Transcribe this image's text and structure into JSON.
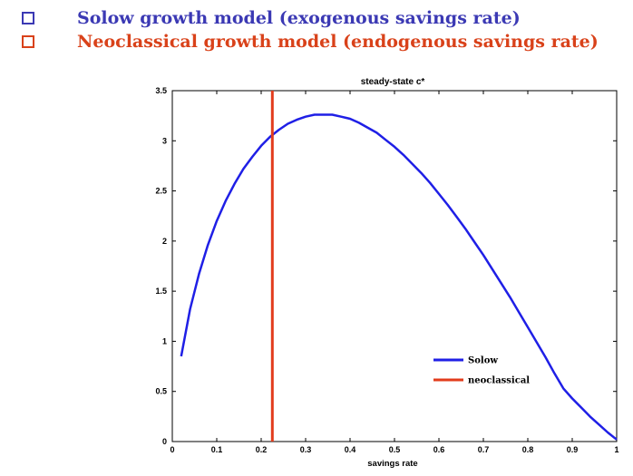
{
  "bullets": [
    {
      "text": "Solow growth model (exogenous savings rate)",
      "color": "#3b39b4"
    },
    {
      "text": "Neoclassical growth model (endogenous savings rate)",
      "color": "#d9421a"
    }
  ],
  "chart_data": {
    "type": "line",
    "title": "steady-state c*",
    "xlabel": "savings rate",
    "ylabel": "",
    "xlim": [
      0,
      1
    ],
    "ylim": [
      0,
      3.5
    ],
    "x_ticks": [
      0,
      0.1,
      0.2,
      0.3,
      0.4,
      0.5,
      0.6,
      0.7,
      0.8,
      0.9,
      1
    ],
    "x_tick_labels": [
      "0",
      "0.1",
      "0.2",
      "0.3",
      "0.4",
      "0.5",
      "0.6",
      "0.7",
      "0.8",
      "0.9",
      "1"
    ],
    "y_ticks": [
      0,
      0.5,
      1,
      1.5,
      2,
      2.5,
      3,
      3.5
    ],
    "y_tick_labels": [
      "0",
      "0.5",
      "1",
      "1.5",
      "2",
      "2.5",
      "3",
      "3.5"
    ],
    "grid": false,
    "legend_position": "bottom-right",
    "series": [
      {
        "name": "Solow",
        "color": "#1f1fe6",
        "x": [
          0.02,
          0.04,
          0.06,
          0.08,
          0.1,
          0.12,
          0.14,
          0.16,
          0.18,
          0.2,
          0.22,
          0.24,
          0.26,
          0.28,
          0.3,
          0.32,
          0.34,
          0.36,
          0.38,
          0.4,
          0.42,
          0.44,
          0.46,
          0.48,
          0.5,
          0.52,
          0.54,
          0.56,
          0.58,
          0.6,
          0.62,
          0.64,
          0.66,
          0.68,
          0.7,
          0.72,
          0.74,
          0.76,
          0.78,
          0.8,
          0.82,
          0.84,
          0.86,
          0.88,
          0.9,
          0.92,
          0.94,
          0.96,
          0.98,
          1.0
        ],
        "y": [
          0.85,
          1.32,
          1.67,
          1.96,
          2.2,
          2.4,
          2.57,
          2.72,
          2.84,
          2.95,
          3.04,
          3.11,
          3.17,
          3.21,
          3.24,
          3.26,
          3.26,
          3.26,
          3.24,
          3.22,
          3.18,
          3.13,
          3.08,
          3.01,
          2.94,
          2.86,
          2.77,
          2.68,
          2.58,
          2.47,
          2.36,
          2.24,
          2.12,
          1.99,
          1.86,
          1.72,
          1.58,
          1.44,
          1.29,
          1.14,
          0.99,
          0.84,
          0.68,
          0.53,
          0.43,
          0.34,
          0.25,
          0.17,
          0.09,
          0.02
        ]
      },
      {
        "name": "neoclassical",
        "color": "#e23c1c",
        "x": [
          0.225,
          0.225
        ],
        "y": [
          0,
          3.5
        ]
      }
    ]
  }
}
